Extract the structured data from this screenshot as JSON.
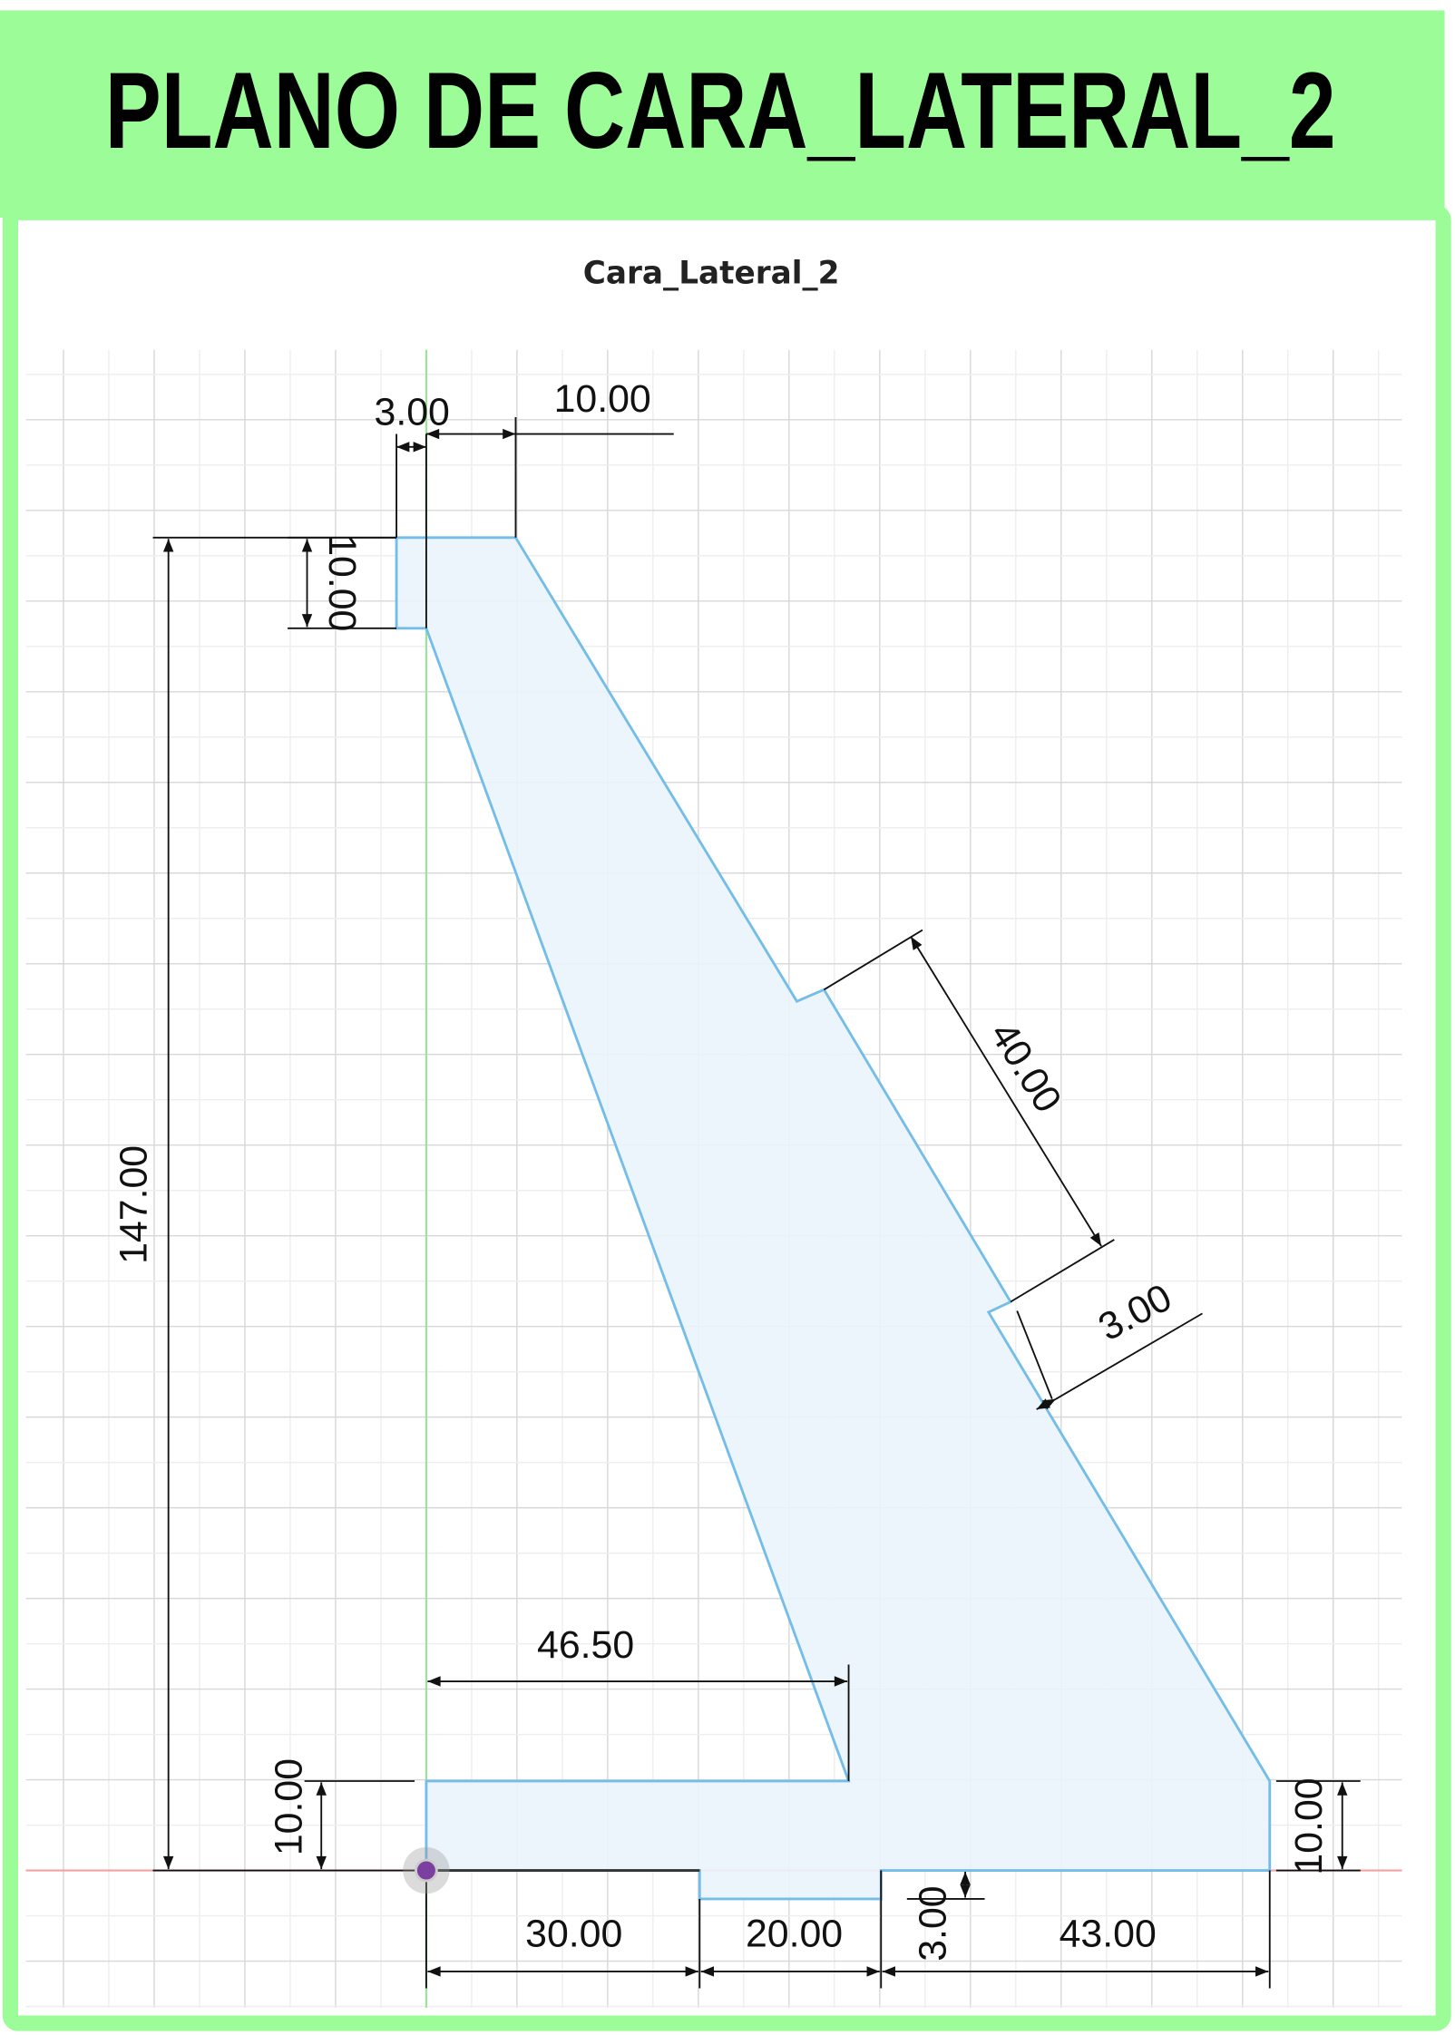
{
  "header": {
    "title": "PLANO DE CARA_LATERAL_2"
  },
  "drawing": {
    "title": "Cara_Lateral_2",
    "dimensions": [
      "3.00",
      "10.00",
      "10.00",
      "147.00",
      "40.00",
      "3.00",
      "46.50",
      "10.00",
      "30.00",
      "20.00",
      "3.00",
      "43.00",
      "10.00"
    ]
  }
}
